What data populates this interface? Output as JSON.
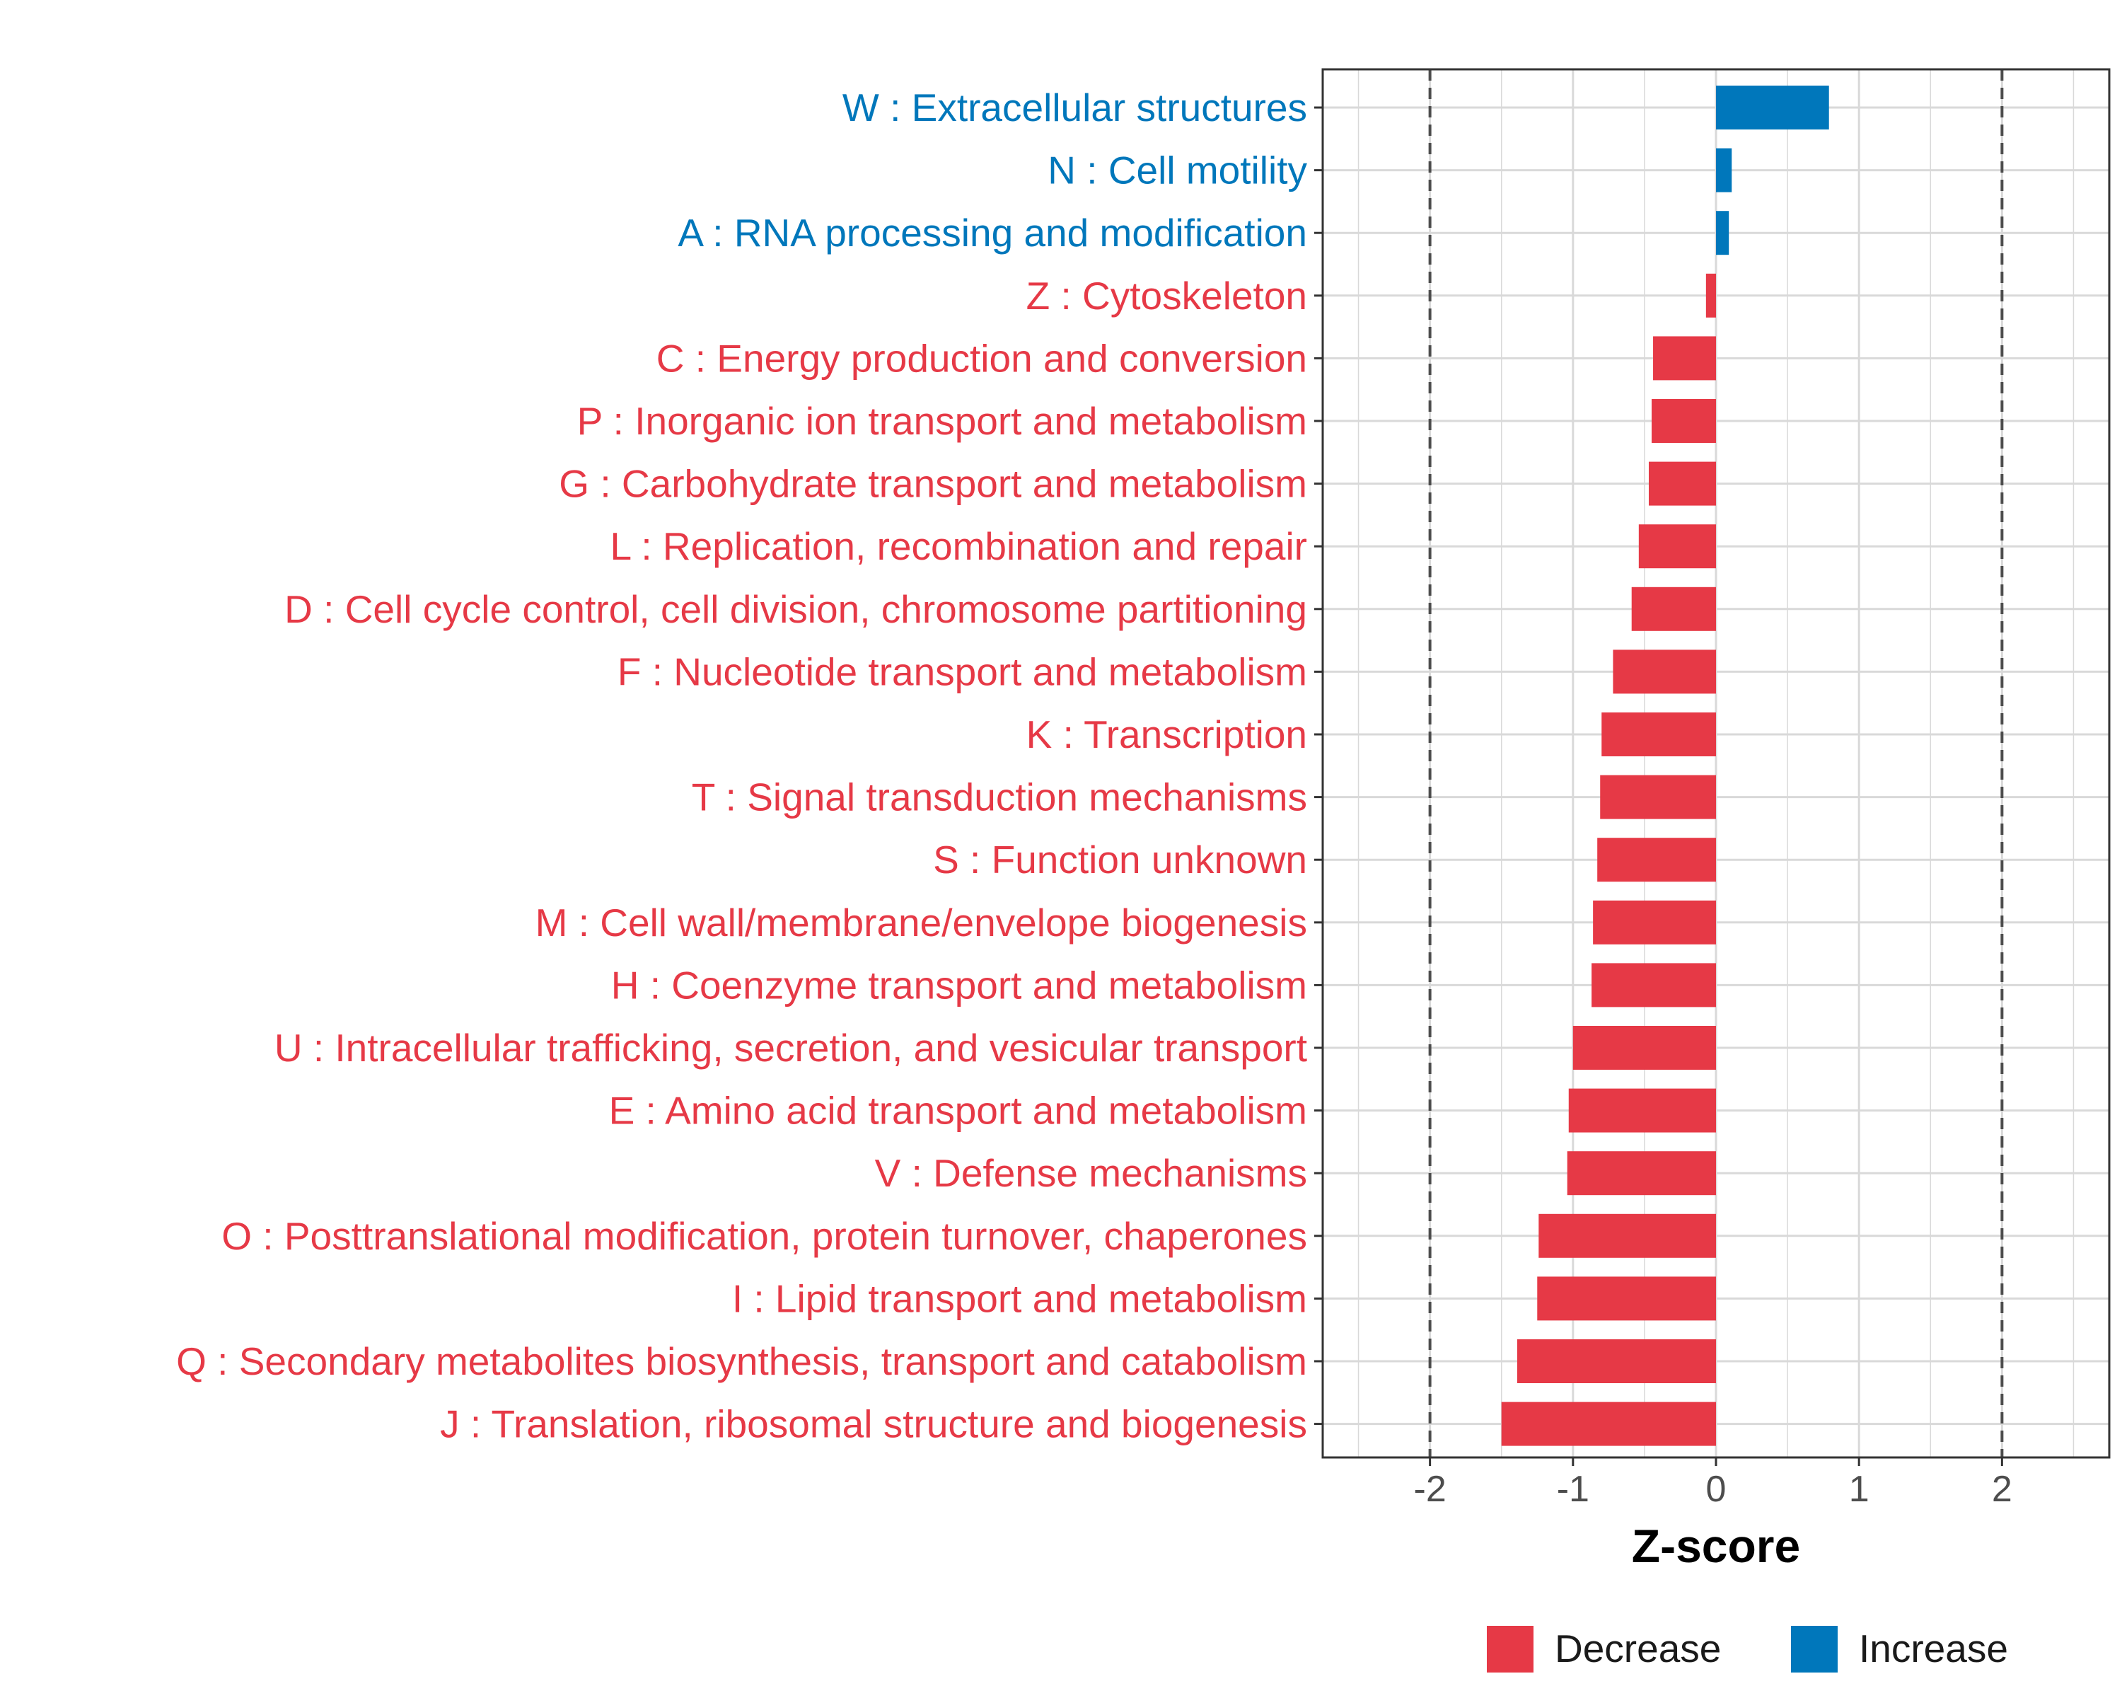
{
  "chart_data": {
    "type": "bar",
    "orientation": "horizontal",
    "categories": [
      "W : Extracellular structures",
      "N : Cell motility",
      "A : RNA processing and modification",
      "Z : Cytoskeleton",
      "C : Energy production and conversion",
      "P : Inorganic ion transport and metabolism",
      "G : Carbohydrate transport and metabolism",
      "L : Replication, recombination and repair",
      "D : Cell cycle control, cell division, chromosome partitioning",
      "F : Nucleotide transport and metabolism",
      "K : Transcription",
      "T : Signal transduction mechanisms",
      "S : Function unknown",
      "M : Cell wall/membrane/envelope biogenesis",
      "H : Coenzyme transport and metabolism",
      "U : Intracellular trafficking, secretion, and vesicular transport",
      "E : Amino acid transport and metabolism",
      "V : Defense mechanisms",
      "O : Posttranslational modification, protein turnover, chaperones",
      "I : Lipid transport and metabolism",
      "Q : Secondary metabolites biosynthesis, transport and catabolism",
      "J : Translation, ribosomal structure and biogenesis"
    ],
    "values": [
      0.79,
      0.11,
      0.09,
      -0.07,
      -0.44,
      -0.45,
      -0.47,
      -0.54,
      -0.59,
      -0.72,
      -0.8,
      -0.81,
      -0.83,
      -0.86,
      -0.87,
      -1.0,
      -1.03,
      -1.04,
      -1.24,
      -1.25,
      -1.39,
      -1.5
    ],
    "groups": [
      "Increase",
      "Increase",
      "Increase",
      "Decrease",
      "Decrease",
      "Decrease",
      "Decrease",
      "Decrease",
      "Decrease",
      "Decrease",
      "Decrease",
      "Decrease",
      "Decrease",
      "Decrease",
      "Decrease",
      "Decrease",
      "Decrease",
      "Decrease",
      "Decrease",
      "Decrease",
      "Decrease",
      "Decrease"
    ],
    "xlabel": "Z-score",
    "ylabel": "",
    "xlim": [
      -2.75,
      2.75
    ],
    "xticks": [
      -2,
      -1,
      0,
      1,
      2
    ],
    "xtick_labels": [
      "-2",
      "-1",
      "0",
      "1",
      "2"
    ],
    "reference_lines": [
      -2,
      2
    ],
    "grid": true,
    "legend": {
      "position": "bottom",
      "entries": [
        {
          "label": "Decrease",
          "color": "#e63946"
        },
        {
          "label": "Increase",
          "color": "#0077bb"
        }
      ]
    },
    "colors": {
      "Decrease": "#e63946",
      "Increase": "#0077bb",
      "grid": "#d9d9d9",
      "panel_border": "#333333",
      "reference_line": "#4d4d4d"
    }
  }
}
